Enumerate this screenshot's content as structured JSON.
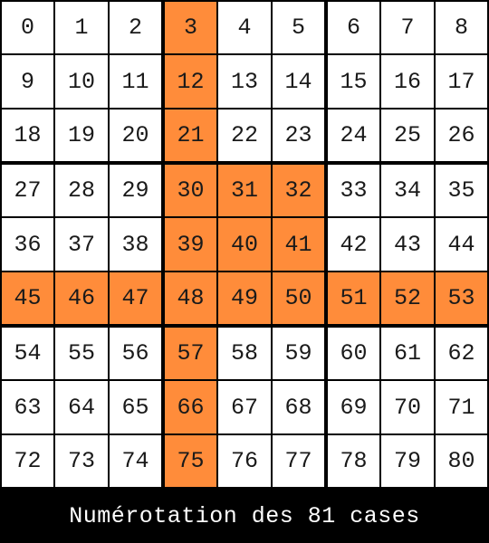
{
  "grid": {
    "rows": 9,
    "cols": 9,
    "cells": [
      "0",
      "1",
      "2",
      "3",
      "4",
      "5",
      "6",
      "7",
      "8",
      "9",
      "10",
      "11",
      "12",
      "13",
      "14",
      "15",
      "16",
      "17",
      "18",
      "19",
      "20",
      "21",
      "22",
      "23",
      "24",
      "25",
      "26",
      "27",
      "28",
      "29",
      "30",
      "31",
      "32",
      "33",
      "34",
      "35",
      "36",
      "37",
      "38",
      "39",
      "40",
      "41",
      "42",
      "43",
      "44",
      "45",
      "46",
      "47",
      "48",
      "49",
      "50",
      "51",
      "52",
      "53",
      "54",
      "55",
      "56",
      "57",
      "58",
      "59",
      "60",
      "61",
      "62",
      "63",
      "64",
      "65",
      "66",
      "67",
      "68",
      "69",
      "70",
      "71",
      "72",
      "73",
      "74",
      "75",
      "76",
      "77",
      "78",
      "79",
      "80"
    ],
    "highlighted": [
      3,
      12,
      21,
      30,
      31,
      32,
      39,
      40,
      41,
      45,
      46,
      47,
      48,
      49,
      50,
      51,
      52,
      53,
      57,
      66,
      75
    ]
  },
  "colors": {
    "cell": "#ffffff",
    "highlight": "#ff8c3a",
    "border": "#000000",
    "text": "#1a1a1a"
  },
  "caption": "Numérotation des 81 cases"
}
